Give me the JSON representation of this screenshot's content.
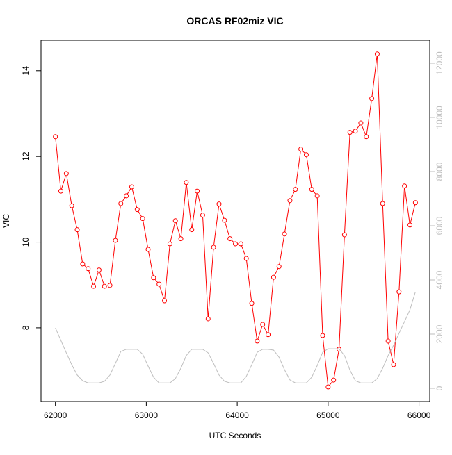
{
  "chart_data": {
    "type": "line",
    "title": "ORCAS RF02miz VIC",
    "x_label": "UTC Seconds",
    "y_label": "VIC",
    "x": [
      62000,
      62060,
      62120,
      62180,
      62240,
      62300,
      62360,
      62420,
      62480,
      62540,
      62600,
      62660,
      62720,
      62780,
      62840,
      62900,
      62960,
      63020,
      63080,
      63140,
      63200,
      63260,
      63320,
      63380,
      63440,
      63500,
      63560,
      63620,
      63680,
      63740,
      63800,
      63860,
      63920,
      63980,
      64040,
      64100,
      64160,
      64220,
      64280,
      64340,
      64400,
      64460,
      64520,
      64580,
      64640,
      64700,
      64760,
      64820,
      64880,
      64940,
      65000,
      65060,
      65120,
      65180,
      65240,
      65300,
      65360,
      65420,
      65480,
      65540,
      65600,
      65660,
      65720,
      65780,
      65840,
      65900,
      65960
    ],
    "series": [
      {
        "color": "#ff0000",
        "marker": "circle",
        "values": [
          12.46,
          11.19,
          11.6,
          10.85,
          10.29,
          9.49,
          9.38,
          8.97,
          9.35,
          8.97,
          8.99,
          10.04,
          10.9,
          11.08,
          11.29,
          10.76,
          10.55,
          9.83,
          9.17,
          9.02,
          8.63,
          9.96,
          10.5,
          10.08,
          11.39,
          10.29,
          11.19,
          10.63,
          8.21,
          9.88,
          10.89,
          10.51,
          10.08,
          9.96,
          9.96,
          9.62,
          8.57,
          7.69,
          8.08,
          7.84,
          9.18,
          9.43,
          10.19,
          10.97,
          11.23,
          12.17,
          12.04,
          11.23,
          11.08,
          7.82,
          6.62,
          6.78,
          7.5,
          10.17,
          12.56,
          12.59,
          12.78,
          12.46,
          13.35,
          14.39,
          10.9,
          7.69,
          7.14,
          8.84,
          11.31,
          10.4,
          10.92
        ]
      },
      {
        "color": "#bebebe",
        "axis": "y2",
        "values": [
          2230,
          1770,
          1310,
          870,
          490,
          280,
          200,
          200,
          200,
          260,
          490,
          920,
          1360,
          1440,
          1440,
          1440,
          1260,
          820,
          410,
          200,
          200,
          200,
          360,
          740,
          1210,
          1440,
          1440,
          1440,
          1310,
          920,
          490,
          260,
          200,
          200,
          200,
          440,
          870,
          1330,
          1440,
          1440,
          1410,
          1150,
          690,
          310,
          200,
          200,
          200,
          410,
          840,
          1330,
          1460,
          1460,
          1460,
          1210,
          670,
          280,
          200,
          200,
          200,
          360,
          740,
          1210,
          1590,
          2030,
          2460,
          2900,
          3560
        ]
      }
    ],
    "xlim": [
      61842,
      66118
    ],
    "xticks": [
      62000,
      63000,
      64000,
      65000,
      66000
    ],
    "ylim": [
      6.28,
      14.71
    ],
    "yticks": [
      8,
      10,
      12,
      14
    ],
    "y2lim": [
      -487,
      12846
    ],
    "y2ticks": [
      0,
      2000,
      4000,
      6000,
      8000,
      10000,
      12000
    ],
    "y2_tick_color": "#bebebe"
  }
}
